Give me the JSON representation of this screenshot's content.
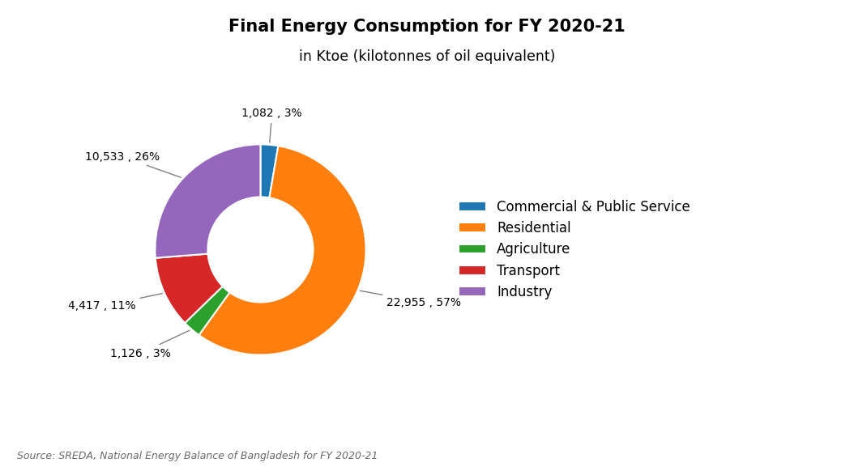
{
  "chart_data": {
    "type": "pie",
    "donut": true,
    "title": "Final Energy Consumption for FY 2020-21",
    "subtitle": "in Ktoe (kilotonnes of oil equivalent)",
    "source": "Source: SREDA, National Energy Balance of Bangladesh for FY 2020-21",
    "categories": [
      "Commercial & Public Service",
      "Residential",
      "Agriculture",
      "Transport",
      "Industry"
    ],
    "values": [
      1082,
      22955,
      1126,
      4417,
      10533
    ],
    "value_labels": [
      "1,082 , 3%",
      "22,955 , 57%",
      "1,126 , 3%",
      "4,417 , 11%",
      "10,533 , 26%"
    ],
    "data_labels": true,
    "legend": "center left"
  }
}
